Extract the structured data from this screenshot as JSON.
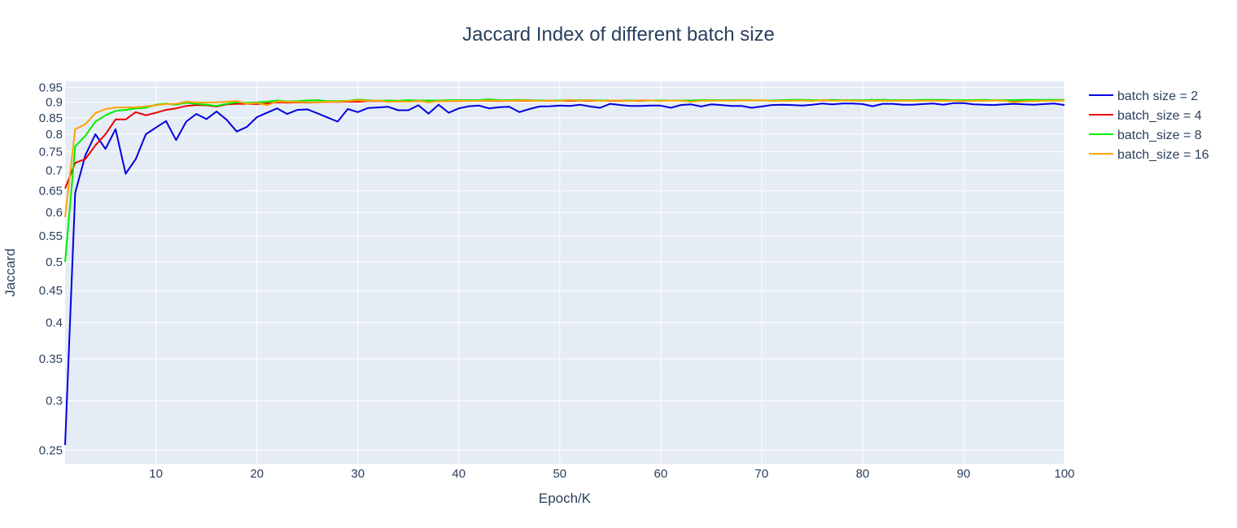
{
  "chart_data": {
    "type": "line",
    "title": "Jaccard Index of different batch size",
    "xlabel": "Epoch/K",
    "ylabel": "Jaccard",
    "xlim": [
      1,
      100
    ],
    "ylim": [
      0.238,
      0.972
    ],
    "yscale": "log",
    "grid": true,
    "legend_position": "right",
    "xticks": [
      10,
      20,
      30,
      40,
      50,
      60,
      70,
      80,
      90,
      100
    ],
    "yticks": [
      0.25,
      0.3,
      0.35,
      0.4,
      0.45,
      0.5,
      0.55,
      0.6,
      0.65,
      0.7,
      0.75,
      0.8,
      0.85,
      0.9,
      0.95
    ],
    "x": [
      1,
      2,
      3,
      4,
      5,
      6,
      7,
      8,
      9,
      10,
      11,
      12,
      13,
      14,
      15,
      16,
      17,
      18,
      19,
      20,
      21,
      22,
      23,
      24,
      25,
      26,
      27,
      28,
      29,
      30,
      31,
      32,
      33,
      34,
      35,
      36,
      37,
      38,
      39,
      40,
      41,
      42,
      43,
      44,
      45,
      46,
      47,
      48,
      49,
      50,
      51,
      52,
      53,
      54,
      55,
      56,
      57,
      58,
      59,
      60,
      61,
      62,
      63,
      64,
      65,
      66,
      67,
      68,
      69,
      70,
      71,
      72,
      73,
      74,
      75,
      76,
      77,
      78,
      79,
      80,
      81,
      82,
      83,
      84,
      85,
      86,
      87,
      88,
      89,
      90,
      91,
      92,
      93,
      94,
      95,
      96,
      97,
      98,
      99,
      100
    ],
    "series": [
      {
        "name": "batch size = 2",
        "color": "#0000dd",
        "values": [
          0.255,
          0.645,
          0.74,
          0.8,
          0.758,
          0.815,
          0.692,
          0.73,
          0.8,
          0.82,
          0.84,
          0.783,
          0.838,
          0.862,
          0.846,
          0.87,
          0.844,
          0.808,
          0.822,
          0.852,
          0.866,
          0.88,
          0.862,
          0.875,
          0.877,
          0.864,
          0.851,
          0.838,
          0.878,
          0.868,
          0.881,
          0.883,
          0.885,
          0.874,
          0.874,
          0.89,
          0.863,
          0.892,
          0.866,
          0.88,
          0.887,
          0.889,
          0.88,
          0.884,
          0.885,
          0.868,
          0.878,
          0.886,
          0.887,
          0.889,
          0.888,
          0.892,
          0.886,
          0.882,
          0.895,
          0.891,
          0.888,
          0.888,
          0.889,
          0.889,
          0.882,
          0.891,
          0.893,
          0.886,
          0.893,
          0.891,
          0.888,
          0.888,
          0.882,
          0.886,
          0.891,
          0.892,
          0.891,
          0.889,
          0.892,
          0.896,
          0.893,
          0.896,
          0.896,
          0.894,
          0.887,
          0.895,
          0.895,
          0.892,
          0.892,
          0.894,
          0.896,
          0.892,
          0.897,
          0.897,
          0.893,
          0.892,
          0.891,
          0.893,
          0.895,
          0.893,
          0.892,
          0.894,
          0.896,
          0.891
        ]
      },
      {
        "name": "batch_size = 4",
        "color": "#ee0000",
        "values": [
          0.655,
          0.72,
          0.73,
          0.768,
          0.8,
          0.845,
          0.845,
          0.868,
          0.858,
          0.866,
          0.875,
          0.88,
          0.888,
          0.891,
          0.89,
          0.886,
          0.893,
          0.895,
          0.895,
          0.894,
          0.896,
          0.9,
          0.899,
          0.9,
          0.899,
          0.9,
          0.901,
          0.901,
          0.902,
          0.902,
          0.904,
          0.904,
          0.903,
          0.903,
          0.903,
          0.904,
          0.904,
          0.904,
          0.904,
          0.904,
          0.905,
          0.905,
          0.905,
          0.904,
          0.905,
          0.905,
          0.905,
          0.905,
          0.905,
          0.905,
          0.905,
          0.905,
          0.905,
          0.905,
          0.905,
          0.905,
          0.905,
          0.905,
          0.906,
          0.906,
          0.906,
          0.906,
          0.906,
          0.906,
          0.906,
          0.906,
          0.906,
          0.906,
          0.906,
          0.906,
          0.906,
          0.906,
          0.906,
          0.906,
          0.906,
          0.906,
          0.906,
          0.906,
          0.906,
          0.906,
          0.906,
          0.906,
          0.906,
          0.906,
          0.906,
          0.906,
          0.906,
          0.906,
          0.906,
          0.906,
          0.906,
          0.906,
          0.906,
          0.906,
          0.906,
          0.906,
          0.906,
          0.906,
          0.906,
          0.906
        ]
      },
      {
        "name": "batch_size = 8",
        "color": "#00ee00",
        "values": [
          0.5,
          0.765,
          0.795,
          0.838,
          0.858,
          0.872,
          0.875,
          0.88,
          0.882,
          0.892,
          0.896,
          0.892,
          0.898,
          0.895,
          0.892,
          0.888,
          0.895,
          0.9,
          0.898,
          0.9,
          0.902,
          0.906,
          0.903,
          0.904,
          0.906,
          0.907,
          0.904,
          0.904,
          0.905,
          0.909,
          0.907,
          0.905,
          0.906,
          0.905,
          0.907,
          0.906,
          0.906,
          0.906,
          0.907,
          0.907,
          0.907,
          0.907,
          0.91,
          0.907,
          0.907,
          0.908,
          0.907,
          0.906,
          0.906,
          0.906,
          0.907,
          0.907,
          0.907,
          0.906,
          0.906,
          0.906,
          0.906,
          0.906,
          0.906,
          0.906,
          0.906,
          0.906,
          0.906,
          0.907,
          0.907,
          0.907,
          0.907,
          0.907,
          0.907,
          0.906,
          0.906,
          0.907,
          0.908,
          0.908,
          0.907,
          0.907,
          0.908,
          0.907,
          0.907,
          0.907,
          0.908,
          0.908,
          0.907,
          0.907,
          0.907,
          0.908,
          0.908,
          0.908,
          0.907,
          0.907,
          0.907,
          0.908,
          0.907,
          0.907,
          0.907,
          0.908,
          0.908,
          0.908,
          0.908,
          0.908
        ]
      },
      {
        "name": "batch_size = 16",
        "color": "#ffa500",
        "values": [
          0.59,
          0.815,
          0.83,
          0.865,
          0.878,
          0.883,
          0.883,
          0.884,
          0.886,
          0.89,
          0.894,
          0.895,
          0.902,
          0.9,
          0.899,
          0.9,
          0.902,
          0.904,
          0.895,
          0.898,
          0.89,
          0.903,
          0.901,
          0.901,
          0.9,
          0.9,
          0.902,
          0.902,
          0.904,
          0.907,
          0.905,
          0.906,
          0.901,
          0.903,
          0.902,
          0.905,
          0.9,
          0.904,
          0.904,
          0.905,
          0.904,
          0.905,
          0.906,
          0.905,
          0.905,
          0.906,
          0.906,
          0.904,
          0.906,
          0.904,
          0.908,
          0.905,
          0.907,
          0.904,
          0.906,
          0.906,
          0.904,
          0.907,
          0.906,
          0.904,
          0.906,
          0.905,
          0.902,
          0.905,
          0.905,
          0.906,
          0.905,
          0.906,
          0.906,
          0.907,
          0.904,
          0.905,
          0.905,
          0.906,
          0.904,
          0.907,
          0.905,
          0.906,
          0.905,
          0.905,
          0.905,
          0.905,
          0.905,
          0.905,
          0.905,
          0.905,
          0.905,
          0.905,
          0.905,
          0.904,
          0.905,
          0.905,
          0.906,
          0.905,
          0.9,
          0.903,
          0.904,
          0.905,
          0.905,
          0.906
        ]
      }
    ]
  }
}
